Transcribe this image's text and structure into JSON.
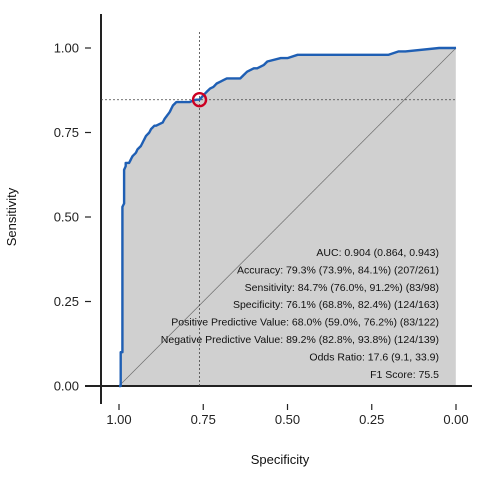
{
  "chart_data": {
    "type": "line",
    "title": "",
    "xlabel": "Specificity",
    "ylabel": "Sensitivity",
    "x_reversed": true,
    "xlim": [
      1.0,
      0.0
    ],
    "ylim": [
      0.0,
      1.0
    ],
    "x_ticks": [
      "1.00",
      "0.75",
      "0.50",
      "0.25",
      "0.00"
    ],
    "y_ticks": [
      "0.00",
      "0.25",
      "0.50",
      "0.75",
      "1.00"
    ],
    "grid": false,
    "reference_line": "diagonal",
    "area_fill": "vertical-hatch",
    "colors": {
      "curve": "#1f5fb4",
      "marker": "#cc0022",
      "fill": "#d9d9d9",
      "fill_lines": "#b5b5b5"
    },
    "optimal_point": {
      "specificity": 0.761,
      "sensitivity": 0.847
    },
    "series": [
      {
        "specificity": [
          1.0,
          0.995,
          0.995,
          0.99,
          0.99,
          0.985,
          0.985,
          0.98,
          0.98,
          0.97,
          0.96,
          0.95,
          0.945,
          0.935,
          0.93,
          0.92,
          0.91,
          0.905,
          0.895,
          0.89,
          0.87,
          0.865,
          0.85,
          0.84,
          0.83,
          0.82,
          0.815,
          0.81,
          0.8,
          0.79,
          0.78,
          0.77,
          0.761,
          0.75,
          0.74,
          0.73,
          0.72,
          0.71,
          0.7,
          0.69,
          0.68,
          0.66,
          0.64,
          0.63,
          0.62,
          0.6,
          0.59,
          0.57,
          0.56,
          0.52,
          0.5,
          0.47,
          0.45,
          0.43,
          0.4,
          0.38,
          0.3,
          0.2,
          0.17,
          0.15,
          0.05,
          0.0
        ],
        "sensitivity": [
          0.0,
          0.0,
          0.1,
          0.1,
          0.53,
          0.54,
          0.64,
          0.65,
          0.66,
          0.66,
          0.68,
          0.69,
          0.7,
          0.71,
          0.72,
          0.74,
          0.75,
          0.76,
          0.77,
          0.77,
          0.78,
          0.79,
          0.81,
          0.83,
          0.84,
          0.84,
          0.84,
          0.84,
          0.84,
          0.84,
          0.845,
          0.847,
          0.847,
          0.86,
          0.87,
          0.88,
          0.885,
          0.895,
          0.9,
          0.905,
          0.91,
          0.91,
          0.91,
          0.92,
          0.93,
          0.94,
          0.94,
          0.95,
          0.96,
          0.97,
          0.97,
          0.98,
          0.98,
          0.98,
          0.98,
          0.98,
          0.98,
          0.98,
          0.99,
          0.99,
          1.0,
          1.0
        ]
      }
    ],
    "annotations": [
      "AUC:  0.904 (0.864, 0.943)",
      "Accuracy:  79.3% (73.9%, 84.1%) (207/261)",
      "Sensitivity:  84.7% (76.0%, 91.2%) (83/98)",
      "Specificity:  76.1% (68.8%, 82.4%) (124/163)",
      "Positive Predictive Value:  68.0% (59.0%, 76.2%) (83/122)",
      "Negative Predictive Value:  89.2% (82.8%, 93.8%) (124/139)",
      "Odds Ratio:  17.6 (9.1, 33.9)",
      "F1 Score:  75.5"
    ]
  }
}
